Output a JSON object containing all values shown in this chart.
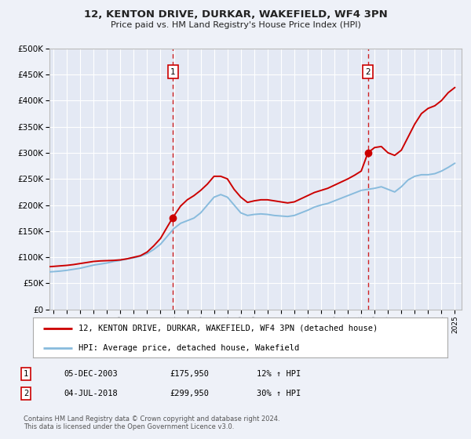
{
  "title": "12, KENTON DRIVE, DURKAR, WAKEFIELD, WF4 3PN",
  "subtitle": "Price paid vs. HM Land Registry's House Price Index (HPI)",
  "bg_color": "#eef1f8",
  "plot_bg_color": "#e4e9f4",
  "grid_color": "#ffffff",
  "line1_color": "#cc0000",
  "line2_color": "#88bbdd",
  "ylim": [
    0,
    500000
  ],
  "yticks": [
    0,
    50000,
    100000,
    150000,
    200000,
    250000,
    300000,
    350000,
    400000,
    450000,
    500000
  ],
  "ytick_labels": [
    "£0",
    "£50K",
    "£100K",
    "£150K",
    "£200K",
    "£250K",
    "£300K",
    "£350K",
    "£400K",
    "£450K",
    "£500K"
  ],
  "xlim_start": 1994.7,
  "xlim_end": 2025.5,
  "xticks": [
    1995,
    1996,
    1997,
    1998,
    1999,
    2000,
    2001,
    2002,
    2003,
    2004,
    2005,
    2006,
    2007,
    2008,
    2009,
    2010,
    2011,
    2012,
    2013,
    2014,
    2015,
    2016,
    2017,
    2018,
    2019,
    2020,
    2021,
    2022,
    2023,
    2024,
    2025
  ],
  "sale1_x": 2003.92,
  "sale1_y": 175950,
  "sale1_label": "1",
  "sale1_date": "05-DEC-2003",
  "sale1_price": "£175,950",
  "sale1_hpi": "12% ↑ HPI",
  "sale2_x": 2018.5,
  "sale2_y": 299950,
  "sale2_label": "2",
  "sale2_date": "04-JUL-2018",
  "sale2_price": "£299,950",
  "sale2_hpi": "30% ↑ HPI",
  "legend1_label": "12, KENTON DRIVE, DURKAR, WAKEFIELD, WF4 3PN (detached house)",
  "legend2_label": "HPI: Average price, detached house, Wakefield",
  "footer1": "Contains HM Land Registry data © Crown copyright and database right 2024.",
  "footer2": "This data is licensed under the Open Government Licence v3.0.",
  "hpi_line_x": [
    1994.7,
    1995.0,
    1995.5,
    1996.0,
    1996.5,
    1997.0,
    1997.5,
    1998.0,
    1998.5,
    1999.0,
    1999.5,
    2000.0,
    2000.5,
    2001.0,
    2001.5,
    2002.0,
    2002.5,
    2003.0,
    2003.5,
    2004.0,
    2004.5,
    2005.0,
    2005.5,
    2006.0,
    2006.5,
    2007.0,
    2007.5,
    2008.0,
    2008.5,
    2009.0,
    2009.5,
    2010.0,
    2010.5,
    2011.0,
    2011.5,
    2012.0,
    2012.5,
    2013.0,
    2013.5,
    2014.0,
    2014.5,
    2015.0,
    2015.5,
    2016.0,
    2016.5,
    2017.0,
    2017.5,
    2018.0,
    2018.5,
    2019.0,
    2019.5,
    2020.0,
    2020.5,
    2021.0,
    2021.5,
    2022.0,
    2022.5,
    2023.0,
    2023.5,
    2024.0,
    2024.5,
    2025.0
  ],
  "hpi_line_y": [
    72000,
    72500,
    73500,
    75000,
    77000,
    79000,
    82000,
    85000,
    87000,
    89000,
    92000,
    94000,
    97000,
    99000,
    102000,
    107000,
    115000,
    125000,
    140000,
    155000,
    165000,
    170000,
    175000,
    185000,
    200000,
    215000,
    220000,
    215000,
    200000,
    185000,
    180000,
    182000,
    183000,
    182000,
    180000,
    179000,
    178000,
    180000,
    185000,
    190000,
    196000,
    200000,
    203000,
    208000,
    213000,
    218000,
    223000,
    228000,
    230000,
    232000,
    235000,
    230000,
    225000,
    235000,
    248000,
    255000,
    258000,
    258000,
    260000,
    265000,
    272000,
    280000
  ],
  "price_line_x": [
    1994.7,
    1995.0,
    1995.5,
    1996.0,
    1996.5,
    1997.0,
    1997.5,
    1998.0,
    1998.5,
    1999.0,
    1999.5,
    2000.0,
    2000.5,
    2001.0,
    2001.5,
    2002.0,
    2002.5,
    2003.0,
    2003.5,
    2003.92,
    2004.5,
    2005.0,
    2005.5,
    2006.0,
    2006.5,
    2007.0,
    2007.5,
    2008.0,
    2008.5,
    2009.0,
    2009.5,
    2010.0,
    2010.5,
    2011.0,
    2011.5,
    2012.0,
    2012.5,
    2013.0,
    2013.5,
    2014.0,
    2014.5,
    2015.0,
    2015.5,
    2016.0,
    2016.5,
    2017.0,
    2017.5,
    2018.0,
    2018.5,
    2019.0,
    2019.5,
    2020.0,
    2020.5,
    2021.0,
    2021.5,
    2022.0,
    2022.5,
    2023.0,
    2023.5,
    2024.0,
    2024.5,
    2025.0
  ],
  "price_line_y": [
    82000,
    82500,
    83500,
    84500,
    86000,
    88000,
    90000,
    92000,
    93000,
    93500,
    94000,
    95000,
    97000,
    100000,
    103000,
    110000,
    122000,
    136000,
    158000,
    175950,
    198000,
    210000,
    218000,
    228000,
    240000,
    255000,
    255000,
    250000,
    230000,
    215000,
    205000,
    208000,
    210000,
    210000,
    208000,
    206000,
    204000,
    206000,
    212000,
    218000,
    224000,
    228000,
    232000,
    238000,
    244000,
    250000,
    257000,
    265000,
    299950,
    310000,
    312000,
    300000,
    295000,
    305000,
    330000,
    355000,
    375000,
    385000,
    390000,
    400000,
    415000,
    425000
  ]
}
